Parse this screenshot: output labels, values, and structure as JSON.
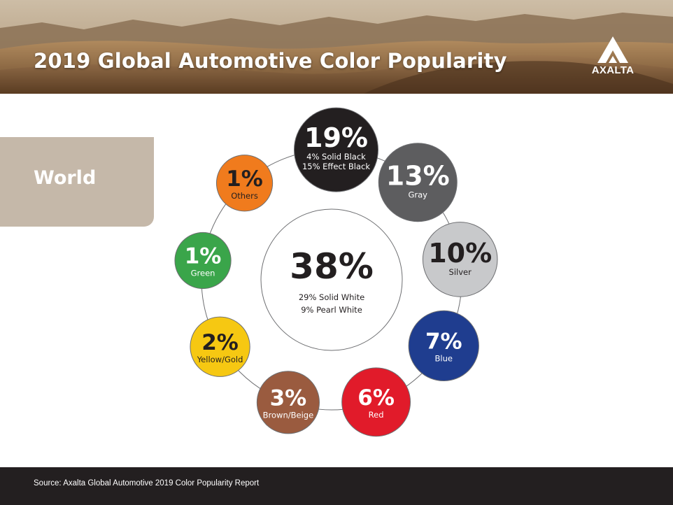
{
  "header": {
    "title": "2019 Global Automotive Color Popularity",
    "logo_text": "AXALTA"
  },
  "region": {
    "label": "World"
  },
  "chart_data": {
    "type": "pie",
    "center": {
      "value": 38,
      "value_label": "38%",
      "lines": [
        "29% Solid White",
        "9% Pearl White"
      ]
    },
    "slices": [
      {
        "value": 19,
        "value_label": "19%",
        "lines": [
          "4% Solid Black",
          "15% Effect Black"
        ],
        "color": "#231f20",
        "text_color": "#ffffff"
      },
      {
        "value": 13,
        "value_label": "13%",
        "lines": [
          "Gray"
        ],
        "color": "#5d5d5f",
        "text_color": "#ffffff"
      },
      {
        "value": 10,
        "value_label": "10%",
        "lines": [
          "Silver"
        ],
        "color": "#c8c9cb",
        "text_color": "#231f20"
      },
      {
        "value": 7,
        "value_label": "7%",
        "lines": [
          "Blue"
        ],
        "color": "#1f3d8f",
        "text_color": "#ffffff"
      },
      {
        "value": 6,
        "value_label": "6%",
        "lines": [
          "Red"
        ],
        "color": "#e11b2a",
        "text_color": "#ffffff"
      },
      {
        "value": 3,
        "value_label": "3%",
        "lines": [
          "Brown/Beige"
        ],
        "color": "#9a5b3f",
        "text_color": "#ffffff"
      },
      {
        "value": 2,
        "value_label": "2%",
        "lines": [
          "Yellow/Gold"
        ],
        "color": "#f6c812",
        "text_color": "#231f20"
      },
      {
        "value": 1,
        "value_label": "1%",
        "lines": [
          "Green"
        ],
        "color": "#3aa54a",
        "text_color": "#ffffff"
      },
      {
        "value": 1,
        "value_label": "1%",
        "lines": [
          "Others"
        ],
        "color": "#f07b1d",
        "text_color": "#231f20"
      }
    ],
    "legend": "none",
    "grid": false
  },
  "footer": {
    "source": "Source: Axalta Global Automotive 2019 Color Popularity Report"
  }
}
